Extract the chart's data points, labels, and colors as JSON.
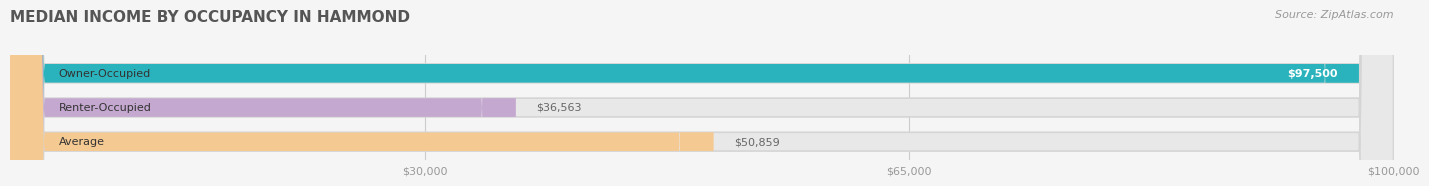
{
  "title": "MEDIAN INCOME BY OCCUPANCY IN HAMMOND",
  "source": "Source: ZipAtlas.com",
  "categories": [
    "Owner-Occupied",
    "Renter-Occupied",
    "Average"
  ],
  "values": [
    97500,
    36563,
    50859
  ],
  "labels": [
    "$97,500",
    "$36,563",
    "$50,859"
  ],
  "bar_colors": [
    "#2ab3bc",
    "#c4a8d0",
    "#f5c992"
  ],
  "xmax": 100000,
  "xticks": [
    30000,
    65000,
    100000
  ],
  "xtick_labels": [
    "$30,000",
    "$65,000",
    "$100,000"
  ],
  "background_color": "#f5f5f5",
  "bar_bg_color": "#e8e8e8",
  "bar_edge_color": "#d5d5d5",
  "title_color": "#555555",
  "source_color": "#999999",
  "tick_label_color": "#999999",
  "grid_color": "#cccccc"
}
